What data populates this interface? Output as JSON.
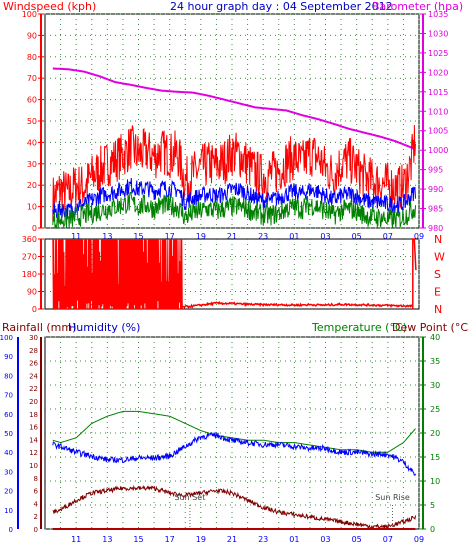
{
  "chart_data": [
    {
      "type": "line",
      "title": "24 hour graph day : 04 September 2012",
      "left_axis_title": "Windspeed (kph)",
      "right_axis_title": "Barometer (hpa)",
      "x_tick_labels": [
        "11",
        "13",
        "15",
        "17",
        "19",
        "21",
        "23",
        "01",
        "03",
        "05",
        "07",
        "09"
      ],
      "x_range_hours": [
        9,
        33
      ],
      "left_ylim": [
        0,
        100
      ],
      "left_ticks": [
        "0",
        "10",
        "20",
        "30",
        "40",
        "50",
        "60",
        "70",
        "80",
        "90",
        "100"
      ],
      "right_ylim": [
        980,
        1035
      ],
      "right_ticks": [
        "980",
        "985",
        "990",
        "995",
        "1000",
        "1005",
        "1010",
        "1015",
        "1020",
        "1025",
        "1030",
        "1035"
      ],
      "grid": true,
      "series": [
        {
          "key": "barometer",
          "axis": "right",
          "color": "#e000e0",
          "x": [
            9.5,
            10.5,
            11.5,
            12.5,
            13.5,
            14.5,
            15.5,
            16.5,
            17.5,
            18.5,
            19.5,
            20.5,
            21.5,
            22.5,
            23.5,
            24.5,
            25.5,
            26.5,
            27.5,
            28.5,
            29.5,
            30.5,
            31.5,
            32.5,
            32.8
          ],
          "values": [
            1021,
            1020.8,
            1020.2,
            1019,
            1017.5,
            1016.8,
            1016,
            1015.3,
            1015,
            1014.8,
            1014,
            1013,
            1012,
            1011,
            1010.6,
            1010.2,
            1009,
            1008,
            1006.8,
            1005.5,
            1004.5,
            1003.5,
            1002.3,
            1000.7,
            1000.1
          ]
        },
        {
          "key": "gust",
          "axis": "left",
          "color": "#ff0000",
          "x": [
            9.5,
            10,
            10.5,
            11,
            11.5,
            12,
            12.5,
            13,
            13.5,
            14,
            14.5,
            15,
            15.5,
            16,
            16.5,
            17,
            17.5,
            18,
            18.5,
            19,
            19.5,
            20,
            20.5,
            21,
            21.5,
            22,
            22.5,
            23,
            23.5,
            24,
            24.5,
            25,
            25.5,
            26,
            26.5,
            27,
            27.5,
            28,
            28.5,
            29,
            29.5,
            30,
            30.5,
            31,
            31.5,
            32,
            32.5,
            32.8
          ],
          "values": [
            14,
            18,
            16,
            20,
            19,
            24,
            27,
            30,
            32,
            34,
            38,
            34,
            36,
            33,
            36,
            34,
            35,
            22,
            25,
            28,
            30,
            29,
            31,
            35,
            34,
            30,
            26,
            24,
            25,
            27,
            31,
            33,
            30,
            35,
            33,
            28,
            25,
            30,
            32,
            28,
            24,
            22,
            21,
            20,
            19,
            19,
            30,
            44
          ]
        },
        {
          "key": "average",
          "axis": "left",
          "color": "#0000ff",
          "x": [
            9.5,
            10,
            10.5,
            11,
            11.5,
            12,
            12.5,
            13,
            13.5,
            14,
            14.5,
            15,
            15.5,
            16,
            16.5,
            17,
            17.5,
            18,
            18.5,
            19,
            19.5,
            20,
            20.5,
            21,
            21.5,
            22,
            22.5,
            23,
            23.5,
            24,
            24.5,
            25,
            25.5,
            26,
            26.5,
            27,
            27.5,
            28,
            28.5,
            29,
            29.5,
            30,
            30.5,
            31,
            31.5,
            32,
            32.5,
            32.8
          ],
          "values": [
            7,
            9,
            8,
            10,
            11,
            13,
            15,
            16,
            17,
            18,
            20,
            18,
            19,
            17,
            19,
            18,
            18,
            12,
            14,
            15,
            16,
            15,
            16,
            18,
            18,
            16,
            14,
            13,
            13,
            14,
            16,
            17,
            16,
            18,
            17,
            15,
            13,
            15,
            16,
            15,
            13,
            12,
            12,
            11,
            11,
            11,
            15,
            18
          ]
        },
        {
          "key": "wind_low",
          "axis": "left",
          "color": "#008000",
          "x": [
            9.5,
            10,
            10.5,
            11,
            11.5,
            12,
            12.5,
            13,
            13.5,
            14,
            14.5,
            15,
            15.5,
            16,
            16.5,
            17,
            17.5,
            18,
            18.5,
            19,
            19.5,
            20,
            20.5,
            21,
            21.5,
            22,
            22.5,
            23,
            23.5,
            24,
            24.5,
            25,
            25.5,
            26,
            26.5,
            27,
            27.5,
            28,
            28.5,
            29,
            29.5,
            30,
            30.5,
            31,
            31.5,
            32,
            32.5,
            32.8
          ],
          "values": [
            3,
            4,
            4,
            5,
            6,
            7,
            8,
            9,
            10,
            11,
            12,
            10,
            11,
            9,
            11,
            10,
            10,
            5,
            7,
            8,
            9,
            8,
            9,
            10,
            10,
            9,
            7,
            6,
            6,
            7,
            9,
            10,
            9,
            11,
            10,
            8,
            6,
            8,
            9,
            8,
            6,
            5,
            5,
            4,
            4,
            5,
            8,
            10
          ]
        }
      ]
    },
    {
      "type": "line",
      "title": "",
      "y_labels_left": [
        "0",
        "90",
        "180",
        "270",
        "360"
      ],
      "y_labels_right": [
        "N",
        "E",
        "S",
        "W",
        "N"
      ],
      "ylim": [
        0,
        360
      ],
      "x_range_hours": [
        9,
        33
      ],
      "grid": true,
      "series": [
        {
          "key": "wind_direction",
          "color": "#ff0000",
          "segments": [
            {
              "x": [
                9.5,
                17.8
              ],
              "pattern": "oscillating",
              "values": [
                0,
                360
              ]
            },
            {
              "x": [
                17.8,
                18.5,
                19,
                20,
                21,
                22,
                23,
                24,
                25,
                26,
                27,
                28,
                29,
                30,
                31,
                32,
                32.6
              ],
              "values": [
                10,
                15,
                20,
                30,
                28,
                24,
                22,
                22,
                20,
                22,
                20,
                24,
                22,
                20,
                18,
                16,
                14
              ]
            },
            {
              "x": [
                32.6,
                32.7,
                32.8
              ],
              "values": [
                360,
                360,
                200
              ]
            }
          ]
        }
      ]
    },
    {
      "type": "line",
      "title": "",
      "left_axis_title_1": "Rainfall (mm)",
      "left_axis_title_2": "Humidity (%)",
      "right_axis_title_1": "Temperature (°C)",
      "right_axis_title_2": "Dew Point (°C)",
      "x_tick_labels": [
        "11",
        "13",
        "15",
        "17",
        "19",
        "21",
        "23",
        "01",
        "03",
        "05",
        "07",
        "09"
      ],
      "x_range_hours": [
        9,
        33
      ],
      "humidity_ticks": [
        "0",
        "10",
        "20",
        "30",
        "40",
        "50",
        "60",
        "70",
        "80",
        "90",
        "100"
      ],
      "rain_ticks": [
        "0",
        "2",
        "4",
        "6",
        "8",
        "10",
        "12",
        "14",
        "16",
        "18",
        "20",
        "22",
        "24",
        "26",
        "28",
        "30"
      ],
      "temp_ticks": [
        "0",
        "5",
        "10",
        "15",
        "20",
        "25",
        "30",
        "35",
        "40"
      ],
      "humidity_ylim": [
        0,
        100
      ],
      "temp_ylim": [
        0,
        40
      ],
      "grid": true,
      "annotations": [
        {
          "text": "Sun Set",
          "x": 18.3
        },
        {
          "text": "Sun Rise",
          "x": 31.3
        }
      ],
      "series": [
        {
          "key": "temperature",
          "axis": "temp",
          "color": "#008000",
          "x": [
            9.5,
            10,
            11,
            12,
            13,
            14,
            15,
            16,
            17,
            18,
            19,
            20,
            21,
            22,
            23,
            24,
            25,
            26,
            27,
            28,
            29,
            30,
            31,
            32,
            32.8
          ],
          "values": [
            18.5,
            18,
            19,
            22,
            23.5,
            24.5,
            24.5,
            24,
            23.5,
            22,
            20.5,
            19.5,
            19,
            18.5,
            18.5,
            18,
            18,
            17.5,
            17,
            16.5,
            16.5,
            16,
            16,
            18,
            21
          ]
        },
        {
          "key": "humidity",
          "axis": "humidity",
          "color": "#0000ff",
          "x": [
            9.5,
            10,
            11,
            12,
            13,
            14,
            15,
            16,
            17,
            18,
            19,
            20,
            21,
            22,
            23,
            24,
            25,
            26,
            27,
            28,
            29,
            30,
            31,
            32,
            32.8
          ],
          "values": [
            44,
            43,
            40,
            38,
            36,
            36,
            37,
            37,
            38,
            43,
            48,
            49,
            46,
            45,
            44,
            44,
            43,
            42,
            42,
            40,
            40,
            39,
            39,
            35,
            28
          ]
        },
        {
          "key": "dew_point",
          "axis": "temp",
          "color": "#800000",
          "x": [
            9.5,
            10,
            11,
            12,
            13,
            14,
            15,
            16,
            17,
            18,
            19,
            20,
            21,
            22,
            23,
            24,
            25,
            26,
            27,
            28,
            29,
            30,
            31,
            32,
            32.8
          ],
          "values": [
            3.5,
            4,
            6,
            7.5,
            8,
            8.5,
            8.5,
            8.5,
            7.5,
            7,
            7.5,
            8,
            7.5,
            6,
            4.5,
            3.5,
            3,
            2.5,
            2,
            1.5,
            1,
            0.5,
            0.5,
            1.5,
            2.5
          ]
        },
        {
          "key": "rainfall",
          "axis": "rain",
          "color": "#b00000",
          "x": [
            9.5,
            32.8
          ],
          "values": [
            0,
            0
          ]
        }
      ]
    }
  ]
}
